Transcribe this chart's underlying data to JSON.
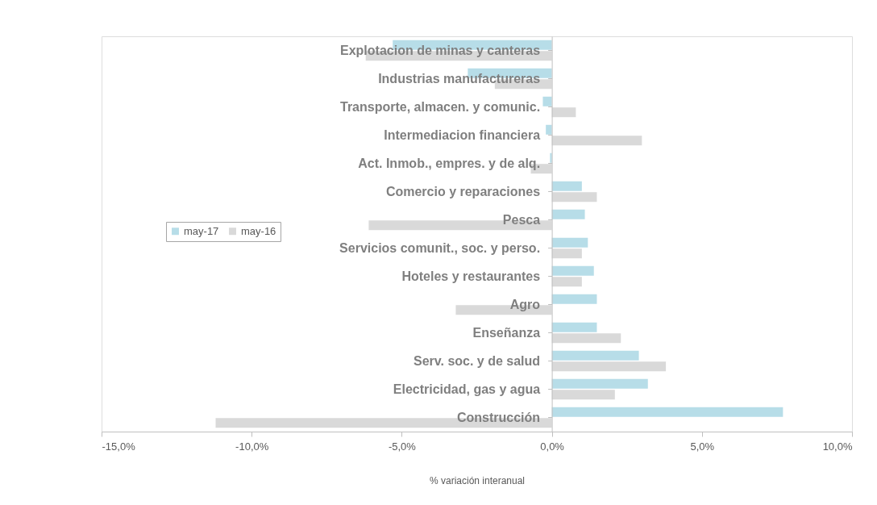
{
  "chart_data": {
    "type": "bar",
    "orientation": "horizontal",
    "categories": [
      "Explotacion de minas y canteras",
      "Industrias manufactureras",
      "Transporte, almacen. y comunic.",
      "Intermediacion financiera",
      "Act. Inmob., empres. y de alq.",
      "Comercio y reparaciones",
      "Pesca",
      "Servicios comunit., soc. y perso.",
      "Hoteles y restaurantes",
      "Agro",
      "Enseñanza",
      "Serv. soc. y de salud",
      "Electricidad, gas y agua",
      "Construcción"
    ],
    "series": [
      {
        "name": "may-17",
        "color": "#b7dde8",
        "values": [
          -5.3,
          -2.8,
          -0.3,
          -0.2,
          -0.06,
          1.0,
          1.1,
          1.2,
          1.4,
          1.5,
          1.5,
          2.9,
          3.2,
          7.7
        ]
      },
      {
        "name": "may-16",
        "color": "#d9d9d9",
        "values": [
          -6.2,
          -1.9,
          0.8,
          3.0,
          -0.7,
          1.5,
          -6.1,
          1.0,
          1.0,
          -3.2,
          2.3,
          3.8,
          2.1,
          -11.2
        ]
      }
    ],
    "xlim": [
      -15,
      10
    ],
    "xticks": [
      {
        "value": -15,
        "label": "-15,0%"
      },
      {
        "value": -10,
        "label": "-10,0%"
      },
      {
        "value": -5,
        "label": "-5,0%"
      },
      {
        "value": 0,
        "label": "0,0%"
      },
      {
        "value": 5,
        "label": "5,0%"
      },
      {
        "value": 10,
        "label": "10,0%"
      }
    ],
    "xlabel": "% variación interanual",
    "legend": "left",
    "grid": false
  }
}
